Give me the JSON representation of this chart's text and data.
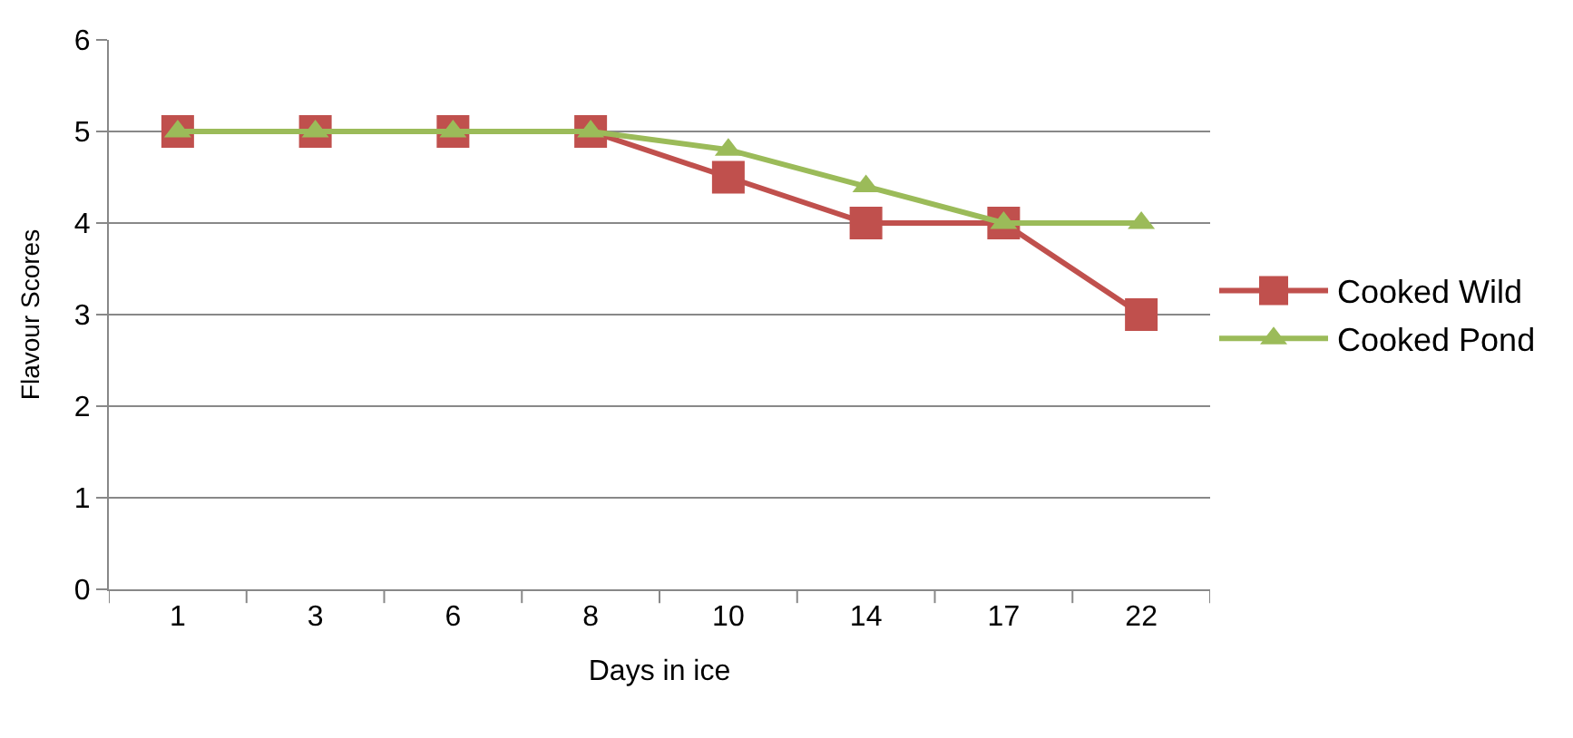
{
  "chart_data": {
    "type": "line",
    "xlabel": "Days in ice",
    "ylabel": "Flavour Scores",
    "categories": [
      "1",
      "3",
      "6",
      "8",
      "10",
      "14",
      "17",
      "22"
    ],
    "series": [
      {
        "name": "Cooked Wild",
        "color": "#c0504d",
        "marker": "square",
        "values": [
          5,
          5,
          5,
          5,
          4.5,
          4,
          4,
          3
        ]
      },
      {
        "name": "Cooked Pond",
        "color": "#9bbb59",
        "marker": "triangle",
        "values": [
          5,
          5,
          5,
          5,
          4.8,
          4.4,
          4,
          4
        ]
      }
    ],
    "ylim": [
      0,
      6
    ],
    "yticks": [
      0,
      1,
      2,
      3,
      4,
      5,
      6
    ],
    "grid": "y",
    "legend": "right",
    "line_style": "solid"
  }
}
